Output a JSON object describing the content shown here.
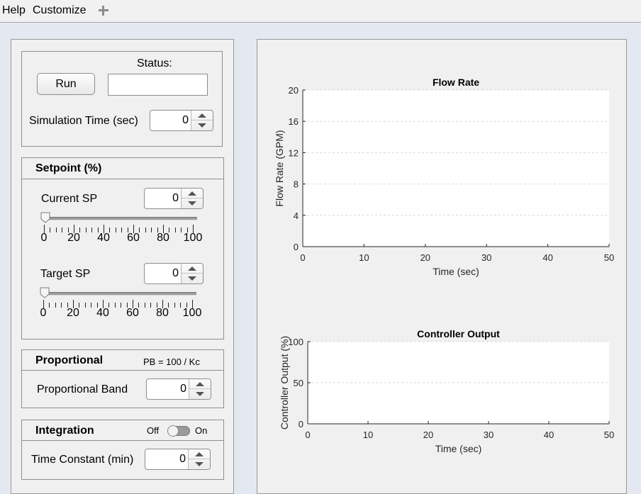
{
  "menubar": {
    "items": [
      "Help",
      "Customize"
    ],
    "add_icon": "plus-icon"
  },
  "run_panel": {
    "run_label": "Run",
    "status_label": "Status:",
    "status_value": "",
    "sim_time_label": "Simulation Time (sec)",
    "sim_time_value": "0"
  },
  "setpoint": {
    "title": "Setpoint (%)",
    "current_label": "Current SP",
    "current_value": "0",
    "current_slider_value": 0,
    "target_label": "Target SP",
    "target_value": "0",
    "target_slider_value": 0,
    "slider_ticks": [
      "0",
      "20",
      "40",
      "60",
      "80",
      "100"
    ]
  },
  "proportional": {
    "title": "Proportional",
    "formula": "PB = 100 / Kc",
    "band_label": "Proportional Band",
    "band_value": "0"
  },
  "integration": {
    "title": "Integration",
    "off_label": "Off",
    "on_label": "On",
    "toggle_state": "off",
    "time_constant_label": "Time Constant (min)",
    "time_constant_value": "0"
  },
  "chart_data": [
    {
      "type": "line",
      "title": "Flow Rate",
      "xlabel": "Time (sec)",
      "ylabel": "Flow Rate (GPM)",
      "xlim": [
        0,
        50
      ],
      "ylim": [
        0,
        20
      ],
      "xticks": [
        "0",
        "10",
        "20",
        "30",
        "40",
        "50"
      ],
      "yticks": [
        "0",
        "4",
        "8",
        "12",
        "16",
        "20"
      ],
      "grid": "y-dashed",
      "series": []
    },
    {
      "type": "line",
      "title": "Controller Output",
      "xlabel": "Time (sec)",
      "ylabel": "Controller Output (%)",
      "xlim": [
        0,
        50
      ],
      "ylim": [
        0,
        100
      ],
      "xticks": [
        "0",
        "10",
        "20",
        "30",
        "40",
        "50"
      ],
      "yticks": [
        "0",
        "50",
        "100"
      ],
      "grid": "y-dashed",
      "series": []
    }
  ]
}
